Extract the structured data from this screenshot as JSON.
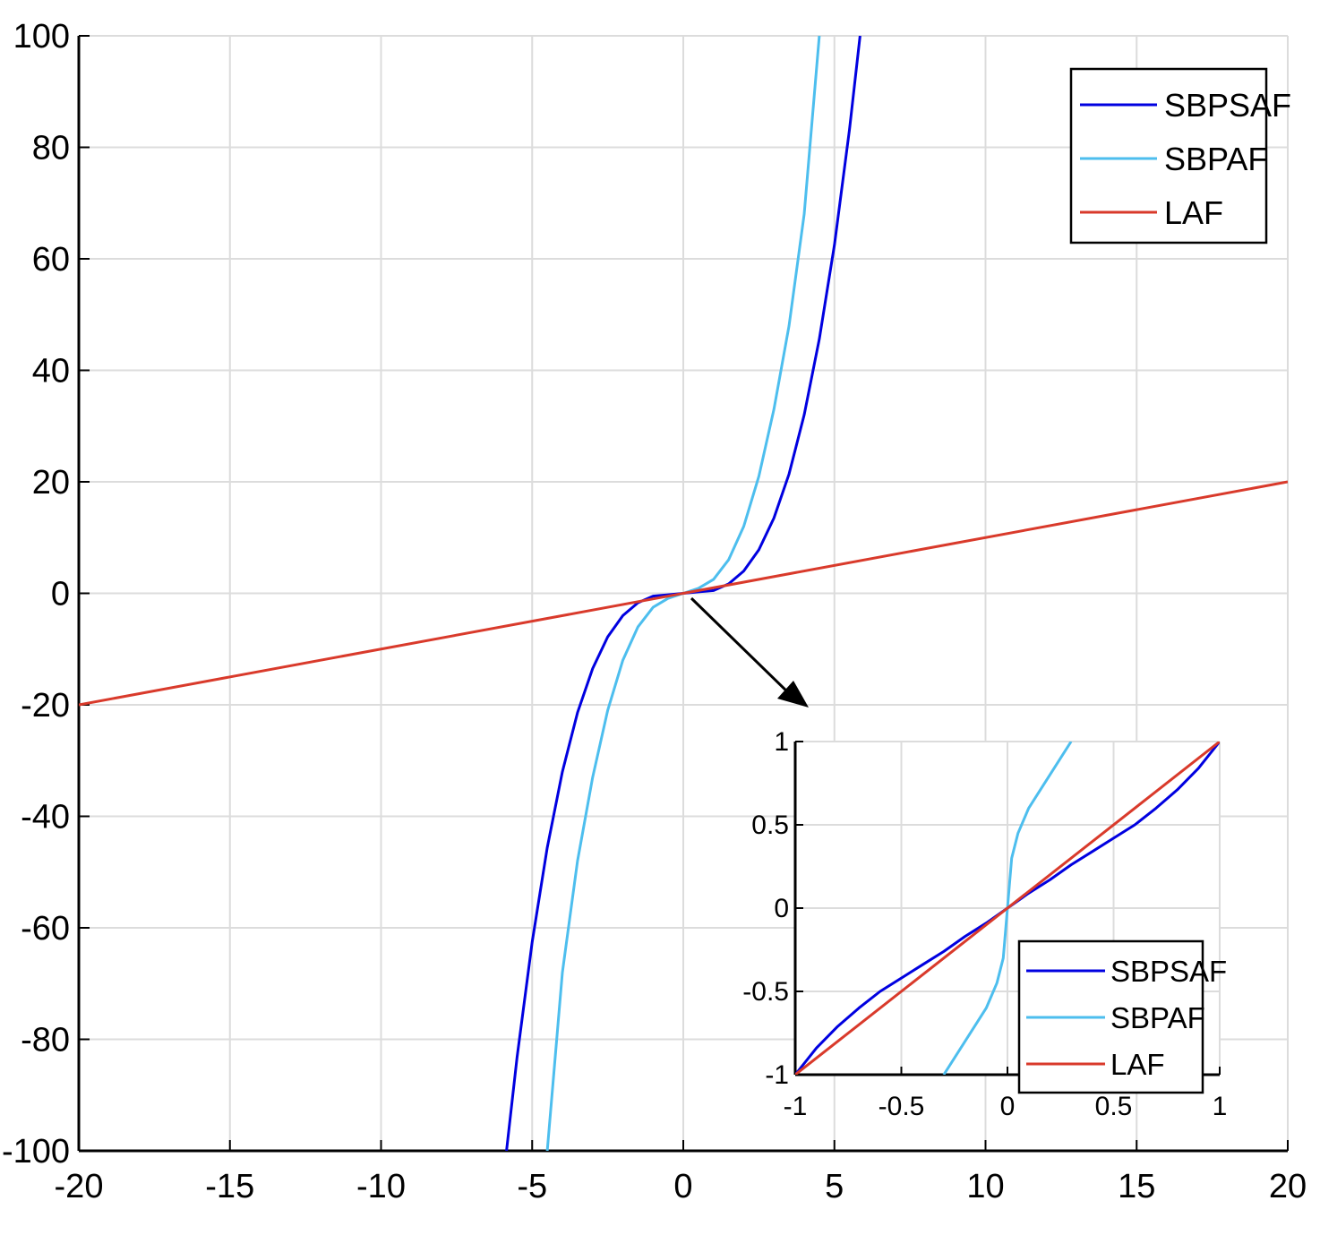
{
  "chart_data": [
    {
      "type": "line",
      "id": "main",
      "title": "",
      "xlabel": "",
      "ylabel": "",
      "xlim": [
        -20,
        20
      ],
      "ylim": [
        -100,
        100
      ],
      "xticks": [
        -20,
        -15,
        -10,
        -5,
        0,
        5,
        10,
        15,
        20
      ],
      "yticks": [
        -100,
        -80,
        -60,
        -40,
        -20,
        0,
        20,
        40,
        60,
        80,
        100
      ],
      "xtick_labels": [
        "-20",
        "-15",
        "-10",
        "-5",
        "0",
        "5",
        "10",
        "15",
        "20"
      ],
      "ytick_labels": [
        "-100",
        "-80",
        "-60",
        "-40",
        "-20",
        "0",
        "20",
        "40",
        "60",
        "80",
        "100"
      ],
      "grid": true,
      "legend_position": "top-right",
      "series": [
        {
          "name": "SBPSAF",
          "color": "#0000e0",
          "x": [
            -5.85,
            -5.5,
            -5,
            -4.5,
            -4,
            -3.5,
            -3,
            -2.5,
            -2,
            -1.5,
            -1,
            -0.5,
            0,
            0.5,
            1,
            1.5,
            2,
            2.5,
            3,
            3.5,
            4,
            4.5,
            5,
            5.5,
            5.85
          ],
          "y": [
            -100,
            -83.2,
            -62.5,
            -45.6,
            -32,
            -21.4,
            -13.5,
            -7.8,
            -4,
            -1.69,
            -0.5,
            -0.26,
            0,
            0.26,
            0.5,
            1.69,
            4,
            7.8,
            13.5,
            21.4,
            32,
            45.6,
            62.5,
            83.2,
            100
          ]
        },
        {
          "name": "SBPAF",
          "color": "#4dbeee",
          "x": [
            -4.5,
            -4,
            -3.5,
            -3,
            -2.5,
            -2,
            -1.5,
            -1,
            -0.5,
            0,
            0.5,
            1,
            1.5,
            2,
            2.5,
            3,
            3.5,
            4,
            4.5
          ],
          "y": [
            -100,
            -68,
            -48,
            -33,
            -21,
            -12,
            -6,
            -2.5,
            -0.9,
            0,
            0.9,
            2.5,
            6,
            12,
            21,
            33,
            48,
            68,
            100
          ]
        },
        {
          "name": "LAF",
          "color": "#d93a2b",
          "x": [
            -20,
            20
          ],
          "y": [
            -20,
            20
          ]
        }
      ]
    },
    {
      "type": "line",
      "id": "inset",
      "title": "",
      "xlabel": "",
      "ylabel": "",
      "xlim": [
        -1,
        1
      ],
      "ylim": [
        -1,
        1
      ],
      "xticks": [
        -1,
        -0.5,
        0,
        0.5,
        1
      ],
      "yticks": [
        -1,
        -0.5,
        0,
        0.5,
        1
      ],
      "xtick_labels": [
        "-1",
        "-0.5",
        "0",
        "0.5",
        "1"
      ],
      "ytick_labels": [
        "-1",
        "-0.5",
        "0",
        "0.5",
        "1"
      ],
      "grid": true,
      "legend_position": "bottom-right",
      "series": [
        {
          "name": "SBPSAF",
          "color": "#0000e0",
          "x": [
            -1,
            -0.9,
            -0.8,
            -0.7,
            -0.6,
            -0.5,
            -0.4,
            -0.3,
            -0.2,
            -0.1,
            0,
            0.1,
            0.2,
            0.3,
            0.4,
            0.5,
            0.6,
            0.7,
            0.8,
            0.9,
            1
          ],
          "y": [
            -1,
            -0.84,
            -0.71,
            -0.6,
            -0.5,
            -0.42,
            -0.34,
            -0.26,
            -0.17,
            -0.09,
            0,
            0.09,
            0.17,
            0.26,
            0.34,
            0.42,
            0.5,
            0.6,
            0.71,
            0.84,
            1
          ]
        },
        {
          "name": "SBPAF",
          "color": "#4dbeee",
          "x": [
            -0.3,
            -0.2,
            -0.1,
            -0.05,
            -0.02,
            0,
            0.02,
            0.05,
            0.1,
            0.2,
            0.3
          ],
          "y": [
            -1,
            -0.8,
            -0.6,
            -0.45,
            -0.3,
            0,
            0.3,
            0.45,
            0.6,
            0.8,
            1
          ]
        },
        {
          "name": "LAF",
          "color": "#d93a2b",
          "x": [
            -1,
            1
          ],
          "y": [
            -1,
            1
          ]
        }
      ]
    }
  ]
}
